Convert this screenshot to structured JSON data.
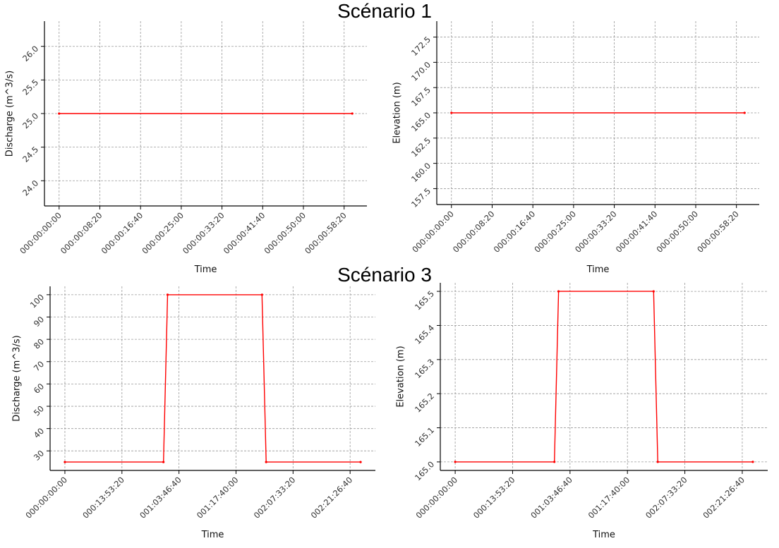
{
  "titles": [
    "Scénario 1",
    "Scénario 3"
  ],
  "chart_data": [
    {
      "type": "line",
      "xlabel": "Time",
      "ylabel": "Discharge (m^3/s)",
      "x_unit": "seconds",
      "xlim": [
        -180,
        3780
      ],
      "ylim": [
        23.625,
        26.375
      ],
      "xticks": [
        0,
        500,
        1000,
        1500,
        2000,
        2500,
        3000,
        3500
      ],
      "xtick_labels": [
        "000:00:00:00",
        "000:00:08:20",
        "000:00:16:40",
        "000:00:25:00",
        "000:00:33:20",
        "000:00:41:40",
        "000:00:50:00",
        "000:00:58:20"
      ],
      "yticks": [
        24.0,
        24.5,
        25.0,
        25.5,
        26.0
      ],
      "ytick_labels": [
        "24.0",
        "24.5",
        "25.0",
        "25.5",
        "26.0"
      ],
      "grid": true,
      "series": [
        {
          "color": "#ff0000",
          "x": [
            0,
            3600
          ],
          "y": [
            25,
            25
          ]
        }
      ]
    },
    {
      "type": "line",
      "xlabel": "Time",
      "ylabel": "Elevation (m)",
      "x_unit": "seconds",
      "xlim": [
        -180,
        3780
      ],
      "ylim": [
        155.925,
        174.075
      ],
      "xticks": [
        0,
        500,
        1000,
        1500,
        2000,
        2500,
        3000,
        3500
      ],
      "xtick_labels": [
        "000:00:00:00",
        "000:00:08:20",
        "000:00:16:40",
        "000:00:25:00",
        "000:00:33:20",
        "000:00:41:40",
        "000:00:50:00",
        "000:00:58:20"
      ],
      "yticks": [
        157.5,
        160.0,
        162.5,
        165.0,
        167.5,
        170.0,
        172.5
      ],
      "ytick_labels": [
        "157.5",
        "160.0",
        "162.5",
        "165.0",
        "167.5",
        "170.0",
        "172.5"
      ],
      "grid": true,
      "series": [
        {
          "color": "#ff0000",
          "x": [
            0,
            3600
          ],
          "y": [
            165,
            165
          ]
        }
      ]
    },
    {
      "type": "line",
      "xlabel": "Time",
      "ylabel": "Discharge (m^3/s)",
      "x_unit": "seconds",
      "xlim": [
        -12960,
        272160
      ],
      "ylim": [
        21.25,
        103.75
      ],
      "xticks": [
        0,
        50000,
        100000,
        150000,
        200000,
        250000
      ],
      "xtick_labels": [
        "000:00:00:00",
        "000:13:53:20",
        "001:03:46:40",
        "001:17:40:00",
        "002:07:33:20",
        "002:21:26:40"
      ],
      "yticks": [
        30,
        40,
        50,
        60,
        70,
        80,
        90,
        100
      ],
      "ytick_labels": [
        "30",
        "40",
        "50",
        "60",
        "70",
        "80",
        "90",
        "100"
      ],
      "grid": true,
      "series": [
        {
          "color": "#ff0000",
          "x": [
            0,
            86400,
            90000,
            172800,
            176400,
            259200
          ],
          "y": [
            25,
            25,
            100,
            100,
            25,
            25
          ]
        }
      ]
    },
    {
      "type": "line",
      "xlabel": "Time",
      "ylabel": "Elevation (m)",
      "x_unit": "seconds",
      "xlim": [
        -12960,
        272160
      ],
      "ylim": [
        164.975,
        165.525
      ],
      "xticks": [
        0,
        50000,
        100000,
        150000,
        200000,
        250000
      ],
      "xtick_labels": [
        "000:00:00:00",
        "000:13:53:20",
        "001:03:46:40",
        "001:17:40:00",
        "002:07:33:20",
        "002:21:26:40"
      ],
      "yticks": [
        165.0,
        165.1,
        165.2,
        165.3,
        165.4,
        165.5
      ],
      "ytick_labels": [
        "165.0",
        "165.1",
        "165.2",
        "165.3",
        "165.4",
        "165.5"
      ],
      "grid": true,
      "series": [
        {
          "color": "#ff0000",
          "x": [
            0,
            86400,
            90000,
            172800,
            176400,
            259200
          ],
          "y": [
            165.0,
            165.0,
            165.5,
            165.5,
            165.0,
            165.0
          ]
        }
      ]
    }
  ]
}
